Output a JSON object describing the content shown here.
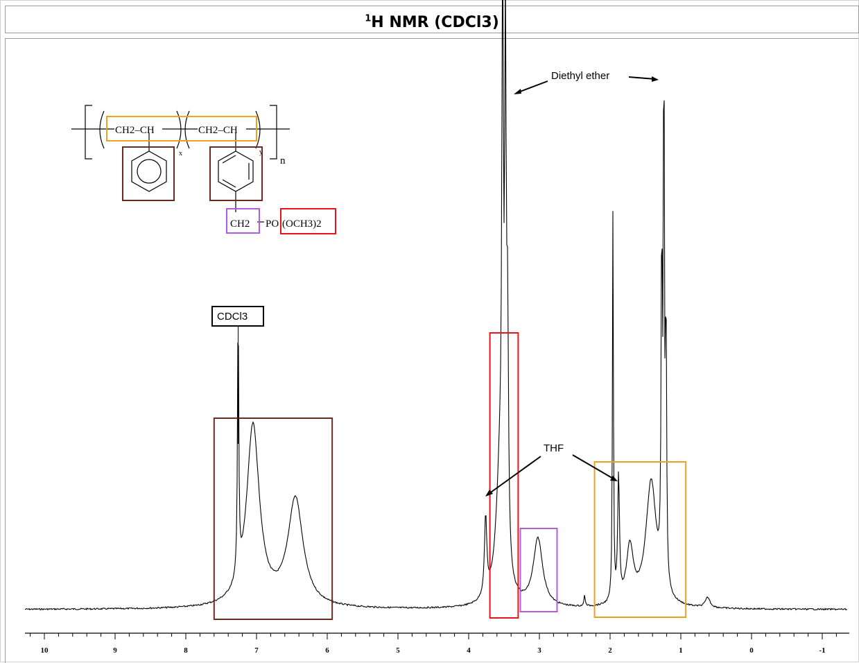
{
  "title": {
    "prefix_sup": "1",
    "main": "H NMR (CDCl3)"
  },
  "chart_data": {
    "type": "line",
    "xlabel": "",
    "ylabel": "",
    "xlim": [
      10.3,
      -1.4
    ],
    "x_reversed": true,
    "ticks": [
      "10",
      "9",
      "8",
      "7",
      "6",
      "5",
      "4",
      "3",
      "2",
      "1",
      "0",
      "-1"
    ],
    "tick_values": [
      10,
      9,
      8,
      7,
      6,
      5,
      4,
      3,
      2,
      1,
      0,
      -1
    ],
    "peaks": [
      {
        "ppm": 7.26,
        "height": 0.49,
        "width": 0.01
      },
      {
        "ppm": 7.05,
        "height": 0.32,
        "width": 0.11
      },
      {
        "ppm": 6.45,
        "height": 0.19,
        "width": 0.13
      },
      {
        "ppm": 3.76,
        "height": 0.14,
        "width": 0.02
      },
      {
        "ppm": 3.55,
        "height": 0.25,
        "width": 0.07
      },
      {
        "ppm": 3.52,
        "height": 0.95,
        "width": 0.012
      },
      {
        "ppm": 3.48,
        "height": 0.86,
        "width": 0.012
      },
      {
        "ppm": 3.45,
        "height": 0.4,
        "width": 0.015
      },
      {
        "ppm": 3.02,
        "height": 0.12,
        "width": 0.08
      },
      {
        "ppm": 2.36,
        "height": 0.02,
        "width": 0.01
      },
      {
        "ppm": 1.96,
        "height": 0.69,
        "width": 0.008
      },
      {
        "ppm": 1.88,
        "height": 0.22,
        "width": 0.015
      },
      {
        "ppm": 1.72,
        "height": 0.1,
        "width": 0.06
      },
      {
        "ppm": 1.42,
        "height": 0.22,
        "width": 0.09
      },
      {
        "ppm": 1.24,
        "height": 1.0,
        "width": 0.008
      },
      {
        "ppm": 1.27,
        "height": 0.6,
        "width": 0.01
      },
      {
        "ppm": 1.21,
        "height": 0.48,
        "width": 0.01
      },
      {
        "ppm": 0.62,
        "height": 0.018,
        "width": 0.04
      }
    ],
    "annotations": [
      {
        "text": "Diethyl ether"
      },
      {
        "text": "THF"
      },
      {
        "text": "CDCl3"
      }
    ],
    "highlight_boxes": [
      {
        "group": "aromatic",
        "color": "#6b2a1e",
        "ppm_range": [
          7.6,
          5.93
        ]
      },
      {
        "group": "OCH3",
        "color": "#e8141a",
        "ppm_range": [
          3.7,
          3.3
        ]
      },
      {
        "group": "CH2-P",
        "color": "#b05be0",
        "ppm_range": [
          3.27,
          2.75
        ]
      },
      {
        "group": "backbone",
        "color": "#f0a020",
        "ppm_range": [
          2.22,
          0.93
        ]
      }
    ]
  },
  "structure": {
    "unit_1": "CH2–CH",
    "unit_2": "CH2–CH",
    "sub_x": "x",
    "sub_y": "y",
    "sub_n": "n",
    "pendant_ch2": "CH2",
    "pendant_po": "PO",
    "pendant_och3": "(OCH3)2"
  }
}
